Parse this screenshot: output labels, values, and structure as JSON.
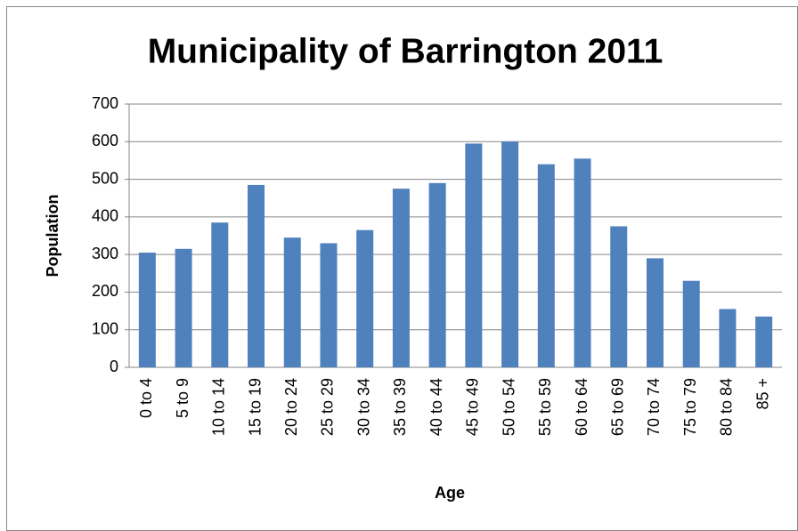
{
  "chart_data": {
    "type": "bar",
    "title": "Municipality of Barrington 2011",
    "x_label": "Age",
    "y_label": "Population",
    "categories": [
      "0 to 4",
      "5 to 9",
      "10 to 14",
      "15 to 19",
      "20 to 24",
      "25 to 29",
      "30 to 34",
      "35 to 39",
      "40 to 44",
      "45 to 49",
      "50 to 54",
      "55 to 59",
      "60 to 64",
      "65 to 69",
      "70 to 74",
      "75 to 79",
      "80 to 84",
      "85 +"
    ],
    "values": [
      305,
      315,
      385,
      485,
      345,
      330,
      365,
      475,
      490,
      595,
      600,
      540,
      555,
      375,
      290,
      230,
      155,
      135
    ],
    "color": "#4f81bd",
    "ylim": [
      0,
      700
    ],
    "yticks": [
      0,
      100,
      200,
      300,
      400,
      500,
      600,
      700
    ],
    "grid": true
  }
}
